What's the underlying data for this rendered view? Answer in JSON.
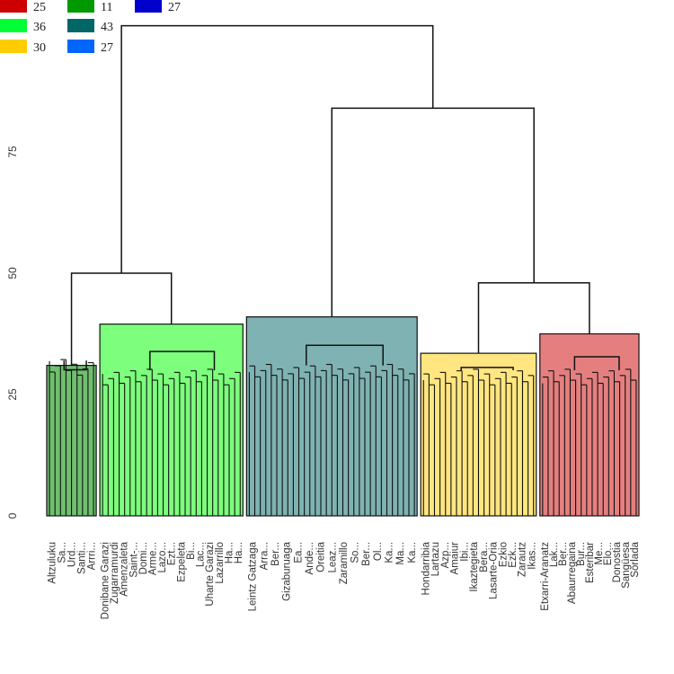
{
  "chart_data": {
    "type": "dendrogram",
    "y_ticks": [
      "0",
      "25",
      "50",
      "75"
    ],
    "y_range": [
      0,
      100
    ],
    "grid": false,
    "legend_position": "top-left",
    "legend": [
      {
        "value": "25",
        "color": "#cc0000"
      },
      {
        "value": "36",
        "color": "#00ff33"
      },
      {
        "value": "30",
        "color": "#ffcc00"
      },
      {
        "value": "11",
        "color": "#009900"
      },
      {
        "value": "43",
        "color": "#006666"
      },
      {
        "value": "27",
        "color": "#0066ff"
      },
      {
        "value": "27",
        "color": "#0000cc"
      }
    ],
    "merge_heights": {
      "root": 101,
      "left_group": 50,
      "right_group": 84,
      "right_sub": 48
    },
    "clusters": [
      {
        "name": "dark-green",
        "leaf_count": 9,
        "fill": "#6fbf6f",
        "top": 31,
        "leaf_min": 29,
        "labels": [
          "Altzuluku",
          "Sa...",
          "Urd...",
          "Santi...",
          "Arrri..."
        ]
      },
      {
        "name": "light-green",
        "leaf_count": 26,
        "fill": "#7dff7d",
        "top": 39.5,
        "leaf_min": 27,
        "labels": [
          "Donibane Garazi",
          "Zugarramurdi",
          "Amenzaleta",
          "Saint-...",
          "Domi...",
          "Arme...",
          "Lazo...",
          "Ezt...",
          "Ezpeleta",
          "Bi...",
          "Lac...",
          "Uharte Garazi",
          "Lazarrillo",
          "Ha...",
          "Ha..."
        ]
      },
      {
        "name": "teal",
        "leaf_count": 31,
        "fill": "#7fb2b2",
        "top": 41,
        "leaf_min": 28,
        "labels": [
          "Leintz Gatzaga",
          "Arra...",
          "Ber...",
          "Gizaburuaga",
          "Ea...",
          "Ande...",
          "Oreitia",
          "Leaz...",
          "Zaramillo",
          "So...",
          "Ber...",
          "Ol...",
          "Ka...",
          "Ma...",
          "Ka..."
        ]
      },
      {
        "name": "yellow",
        "leaf_count": 21,
        "fill": "#ffe680",
        "top": 33.5,
        "leaf_min": 27,
        "labels": [
          "Hondarribia",
          "Lartazu",
          "Azp...",
          "Amaiur",
          "Ibi...",
          "Ikaztegieta",
          "Bera...",
          "Lasarte-Oria",
          "Ezkio",
          "Ezk...",
          "Zarautz",
          "Ikas..."
        ]
      },
      {
        "name": "red",
        "leaf_count": 18,
        "fill": "#e57f7f",
        "top": 37.5,
        "leaf_min": 27,
        "labels": [
          "Etxarri-Aranatz",
          "Lak...",
          "Ber...",
          "Abaurregaina",
          "Bur...",
          "Esteribar",
          "Me...",
          "Elo...",
          "Donostia",
          "Sangüesa",
          "Sorlada"
        ]
      }
    ]
  }
}
